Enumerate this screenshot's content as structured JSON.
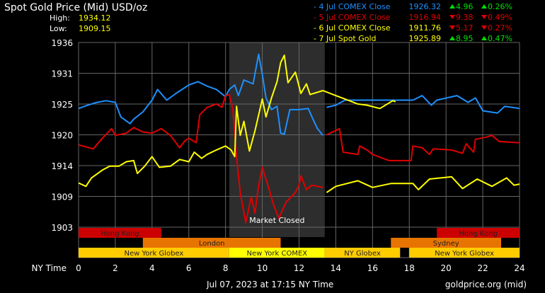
{
  "header": {
    "title": "Spot Gold Price (Mid) USD/oz",
    "high_label": "High:",
    "high_value": "1934.12",
    "low_label": "Low:",
    "low_value": "1909.15"
  },
  "legend": [
    {
      "label": "- 4 Jul COMEX Close",
      "price": "1926.32",
      "change": "4.96",
      "pct": "0.26%",
      "dir": "up",
      "color": "#1e90ff"
    },
    {
      "label": "- 5 Jul COMEX Close",
      "price": "1916.94",
      "change": "9.38",
      "pct": "0.49%",
      "dir": "down",
      "color": "#e00000"
    },
    {
      "label": "- 6 Jul COMEX Close",
      "price": "1911.76",
      "change": "5.17",
      "pct": "0.27%",
      "dir": "down",
      "color": "#ffff00"
    },
    {
      "label": "- 7 Jul Spot Gold",
      "price": "1925.89",
      "change": "8.95",
      "pct": "0.47%",
      "dir": "up",
      "color": "#ffff00"
    }
  ],
  "footer": {
    "timestamp": "Jul 07, 2023 at 17:15 NY Time",
    "source": "goldprice.org (mid)"
  },
  "chart_data": {
    "type": "line",
    "title": "Spot Gold Price (Mid) USD/oz",
    "xlabel": "NY Time",
    "ylabel": "",
    "xlim": [
      0,
      24
    ],
    "ylim": [
      1903.5,
      1936.5
    ],
    "x_ticks": [
      0,
      2,
      4,
      6,
      8,
      10,
      12,
      14,
      16,
      18,
      20,
      22,
      24
    ],
    "y_ticks": [
      1903.5,
      1909,
      1914.5,
      1920,
      1925.5,
      1931,
      1936.5
    ],
    "y_tick_labels": [
      "1903",
      "1909",
      "1914",
      "1920",
      "1925",
      "1931",
      "1936"
    ],
    "grid": true,
    "legend_position": "top-right",
    "annotation": {
      "text": "Market Closed",
      "from": 8.2,
      "to": 13.4
    },
    "sessions": [
      {
        "name": "Hong Kong",
        "row": 0,
        "from": 0,
        "to": 4.5,
        "color": "#cc0000"
      },
      {
        "name": "Hong Kong",
        "row": 0,
        "from": 19.5,
        "to": 24,
        "color": "#cc0000"
      },
      {
        "name": "London",
        "row": 1,
        "from": 3.5,
        "to": 11,
        "color": "#e87400"
      },
      {
        "name": "Sydney",
        "row": 1,
        "from": 17,
        "to": 23,
        "color": "#e87400"
      },
      {
        "name": "New York Globex",
        "row": 2,
        "from": 0,
        "to": 8.2,
        "color": "#ffcc00"
      },
      {
        "name": "New York COMEX",
        "row": 2,
        "from": 8.2,
        "to": 13.4,
        "color": "#ffff00"
      },
      {
        "name": "NY Globex",
        "row": 2,
        "from": 13.4,
        "to": 17.5,
        "color": "#ffcc00"
      },
      {
        "name": "New York Globex",
        "row": 2,
        "from": 18,
        "to": 24,
        "color": "#ffcc00"
      }
    ],
    "series": [
      {
        "name": "4 Jul COMEX Close",
        "color": "#1e90ff",
        "segments": [
          [
            [
              0,
              1924.7
            ],
            [
              0.5,
              1925.3
            ],
            [
              1,
              1925.8
            ],
            [
              1.5,
              1926.1
            ],
            [
              2,
              1925.8
            ],
            [
              2.3,
              1923.2
            ],
            [
              2.8,
              1922
            ],
            [
              3,
              1922.8
            ],
            [
              3.5,
              1924.1
            ],
            [
              4,
              1926.2
            ],
            [
              4.3,
              1928.1
            ],
            [
              4.8,
              1926.2
            ],
            [
              5.3,
              1927.4
            ],
            [
              6,
              1928.9
            ],
            [
              6.5,
              1929.5
            ],
            [
              7,
              1928.7
            ],
            [
              7.5,
              1928.1
            ],
            [
              8,
              1926.8
            ],
            [
              8.2,
              1928.1
            ],
            [
              8.5,
              1928.9
            ],
            [
              8.7,
              1927
            ],
            [
              9,
              1929.8
            ],
            [
              9.5,
              1929.1
            ],
            [
              9.8,
              1934.4
            ],
            [
              10,
              1930.8
            ],
            [
              10.2,
              1926.6
            ],
            [
              10.5,
              1924.5
            ],
            [
              10.8,
              1925.1
            ],
            [
              11,
              1920.3
            ],
            [
              11.2,
              1920.1
            ],
            [
              11.5,
              1924.5
            ],
            [
              12,
              1924.5
            ],
            [
              12.5,
              1924.7
            ],
            [
              12.7,
              1923.2
            ],
            [
              13,
              1921.1
            ],
            [
              13.3,
              1919.9
            ]
          ],
          [
            [
              13.5,
              1924.9
            ],
            [
              14,
              1925.3
            ],
            [
              14.5,
              1926.2
            ],
            [
              18.2,
              1926.2
            ],
            [
              18.7,
              1927
            ],
            [
              19.2,
              1925.3
            ],
            [
              19.5,
              1926.2
            ],
            [
              20.6,
              1927
            ],
            [
              21.2,
              1925.8
            ],
            [
              21.6,
              1926.6
            ],
            [
              22,
              1924.3
            ],
            [
              22.8,
              1923.9
            ],
            [
              23.2,
              1925.1
            ],
            [
              24,
              1924.7
            ]
          ]
        ]
      },
      {
        "name": "5 Jul COMEX Close",
        "color": "#e00000",
        "segments": [
          [
            [
              0,
              1918.2
            ],
            [
              0.8,
              1917.5
            ],
            [
              1.3,
              1919.4
            ],
            [
              1.8,
              1921.1
            ],
            [
              2,
              1919.9
            ],
            [
              2.6,
              1920.3
            ],
            [
              3,
              1921.3
            ],
            [
              3.5,
              1920.5
            ],
            [
              4,
              1920.3
            ],
            [
              4.5,
              1921.1
            ],
            [
              5,
              1919.9
            ],
            [
              5.5,
              1917.7
            ],
            [
              5.8,
              1919
            ],
            [
              6,
              1919.4
            ],
            [
              6.4,
              1918.6
            ],
            [
              6.6,
              1923.6
            ],
            [
              7,
              1924.9
            ],
            [
              7.5,
              1925.5
            ],
            [
              7.8,
              1924.9
            ],
            [
              8,
              1927
            ],
            [
              8.2,
              1927.2
            ],
            [
              8.4,
              1924.5
            ],
            [
              8.6,
              1916.1
            ],
            [
              8.8,
              1909.7
            ],
            [
              9.1,
              1904.3
            ],
            [
              9.4,
              1908.9
            ],
            [
              9.6,
              1906
            ],
            [
              9.8,
              1911
            ],
            [
              10,
              1914.2
            ],
            [
              10.3,
              1911
            ],
            [
              10.6,
              1907.6
            ],
            [
              10.9,
              1905.1
            ],
            [
              11.3,
              1908
            ],
            [
              11.8,
              1909.7
            ],
            [
              12,
              1911
            ],
            [
              12.1,
              1912.7
            ],
            [
              12.4,
              1910.2
            ],
            [
              12.7,
              1911
            ],
            [
              13.3,
              1910.6
            ]
          ],
          [
            [
              13.5,
              1920
            ],
            [
              14.2,
              1921.1
            ],
            [
              14.4,
              1916.9
            ],
            [
              15.2,
              1916.5
            ],
            [
              15.3,
              1918
            ],
            [
              15.7,
              1917.3
            ],
            [
              16,
              1916.5
            ],
            [
              16.9,
              1915.4
            ],
            [
              18.1,
              1915.4
            ],
            [
              18.2,
              1918
            ],
            [
              18.7,
              1917.7
            ],
            [
              19.1,
              1916.5
            ],
            [
              19.3,
              1917.5
            ],
            [
              20.3,
              1917.3
            ],
            [
              20.9,
              1916.7
            ],
            [
              21.1,
              1918.4
            ],
            [
              21.5,
              1916.9
            ],
            [
              21.6,
              1919.2
            ],
            [
              22.2,
              1919.6
            ],
            [
              22.5,
              1919.9
            ],
            [
              22.9,
              1918.8
            ],
            [
              24,
              1918.6
            ]
          ]
        ]
      },
      {
        "name": "6 Jul COMEX Close",
        "color": "#ffff00",
        "segments": [
          [
            [
              13.5,
              1909.7
            ],
            [
              14,
              1910.8
            ],
            [
              15.2,
              1911.8
            ],
            [
              16,
              1910.6
            ],
            [
              17,
              1911.3
            ],
            [
              18.2,
              1911.3
            ],
            [
              18.5,
              1910.2
            ],
            [
              19.1,
              1912.1
            ],
            [
              20.3,
              1912.5
            ],
            [
              20.9,
              1910.4
            ],
            [
              21.7,
              1912.1
            ],
            [
              22.5,
              1910.8
            ],
            [
              23.3,
              1912.3
            ],
            [
              23.7,
              1911
            ],
            [
              24,
              1911.2
            ]
          ]
        ]
      },
      {
        "name": "7 Jul Spot Gold",
        "color": "#ffff00",
        "segments": [
          [
            [
              0,
              1911.4
            ],
            [
              0.4,
              1910.8
            ],
            [
              0.7,
              1912.3
            ],
            [
              1.3,
              1913.7
            ],
            [
              1.7,
              1914.4
            ],
            [
              2.2,
              1914.4
            ],
            [
              2.6,
              1915.2
            ],
            [
              3,
              1915.4
            ],
            [
              3.2,
              1913.1
            ],
            [
              3.6,
              1914.4
            ],
            [
              4,
              1916.1
            ],
            [
              4.4,
              1914.2
            ],
            [
              5,
              1914.4
            ],
            [
              5.5,
              1915.6
            ],
            [
              6,
              1915.2
            ],
            [
              6.3,
              1916.9
            ],
            [
              6.7,
              1915.8
            ],
            [
              7,
              1916.5
            ],
            [
              7.5,
              1917.3
            ],
            [
              8,
              1918
            ],
            [
              8.3,
              1917.3
            ],
            [
              8.5,
              1916.1
            ],
            [
              8.6,
              1925.1
            ],
            [
              8.8,
              1919.9
            ],
            [
              9,
              1922.4
            ],
            [
              9.3,
              1917.1
            ],
            [
              9.6,
              1920.7
            ],
            [
              10,
              1926.4
            ],
            [
              10.2,
              1923.2
            ],
            [
              10.5,
              1926.6
            ],
            [
              10.8,
              1929.5
            ],
            [
              11,
              1932.9
            ],
            [
              11.2,
              1934.2
            ],
            [
              11.4,
              1929.3
            ],
            [
              11.8,
              1931.2
            ],
            [
              12.1,
              1927.4
            ],
            [
              12.4,
              1929.1
            ],
            [
              12.6,
              1927.2
            ],
            [
              13.3,
              1927.9
            ],
            [
              14,
              1927
            ],
            [
              14.5,
              1926.4
            ],
            [
              15.2,
              1925.5
            ],
            [
              15.7,
              1925.3
            ],
            [
              16.4,
              1924.7
            ],
            [
              17.1,
              1926.1
            ],
            [
              17.25,
              1925.9
            ]
          ]
        ]
      }
    ]
  }
}
